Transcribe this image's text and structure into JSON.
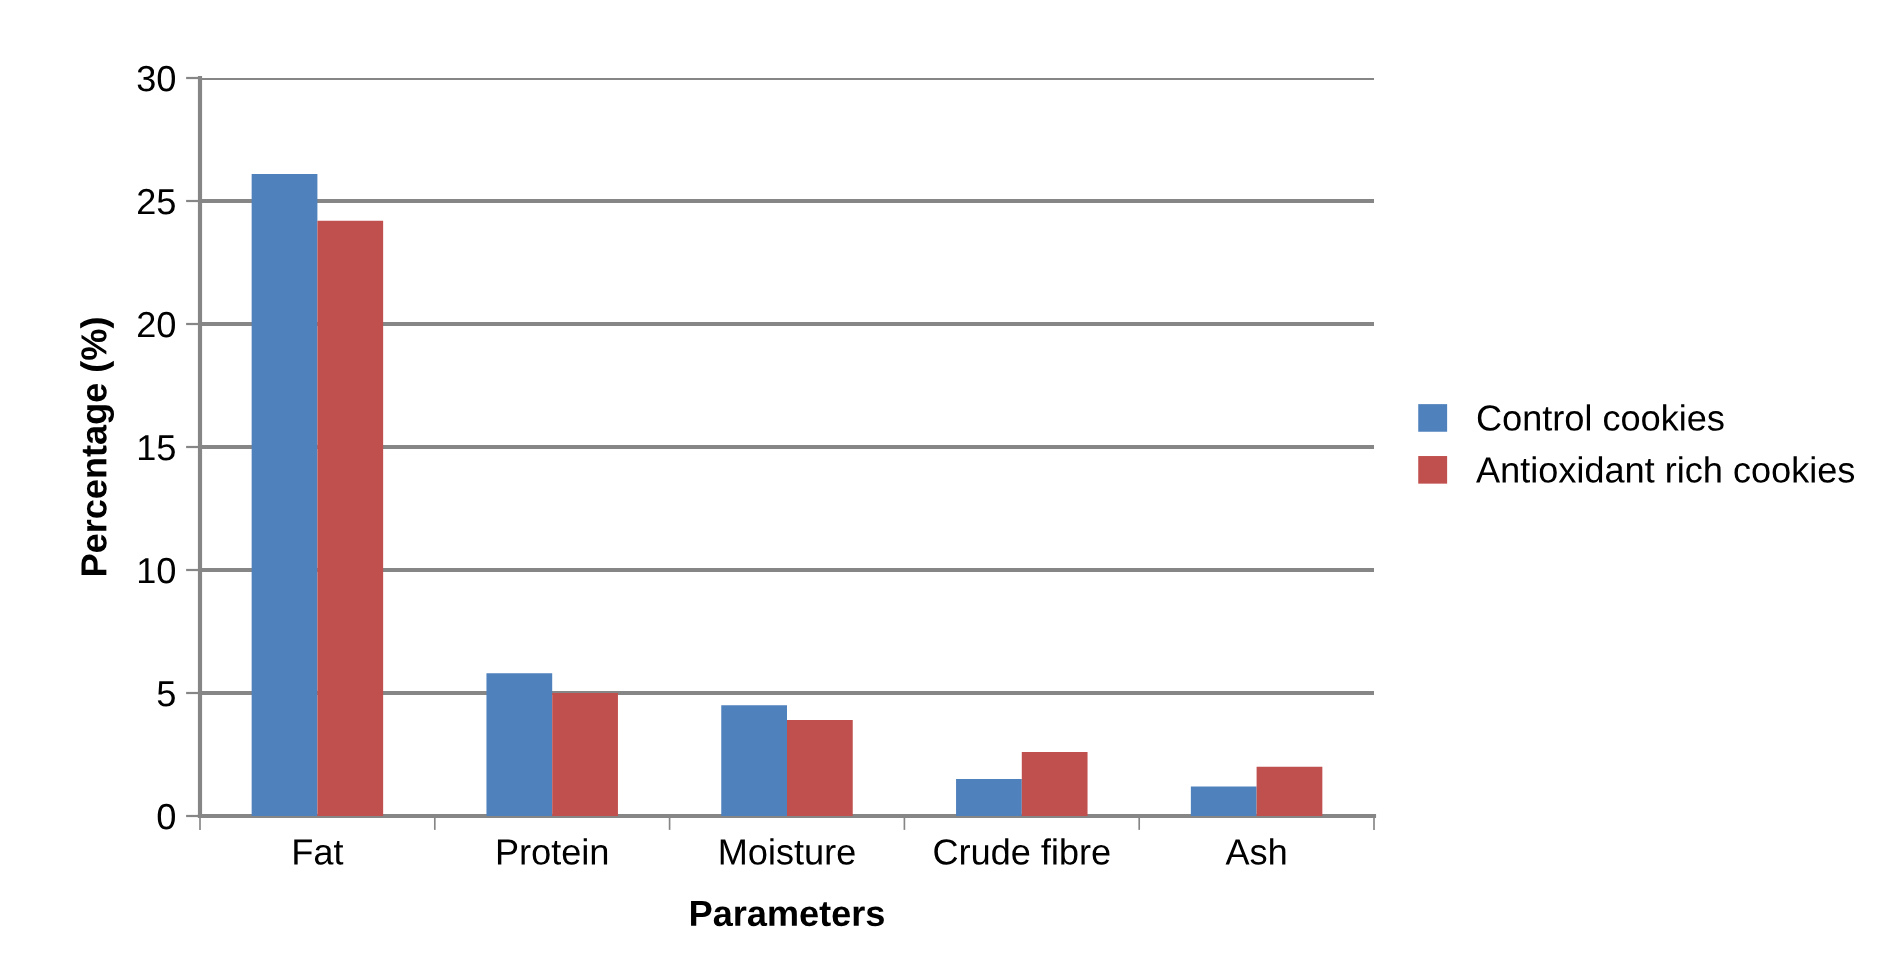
{
  "chart_data": {
    "type": "bar",
    "xlabel": "Parameters",
    "ylabel": "Percentage (%)",
    "categories": [
      "Fat",
      "Protein",
      "Moisture",
      "Crude fibre",
      "Ash"
    ],
    "series": [
      {
        "name": "Control cookies",
        "color": "#4f81bd",
        "values": [
          26.1,
          5.8,
          4.5,
          1.5,
          1.2
        ]
      },
      {
        "name": "Antioxidant rich cookies",
        "color": "#c0504d",
        "values": [
          24.2,
          5.0,
          3.9,
          2.6,
          2.0
        ]
      }
    ],
    "ylim": [
      0,
      30
    ],
    "yticks": [
      0,
      5,
      10,
      15,
      20,
      25,
      30
    ],
    "grid": "y",
    "legend": "right"
  }
}
